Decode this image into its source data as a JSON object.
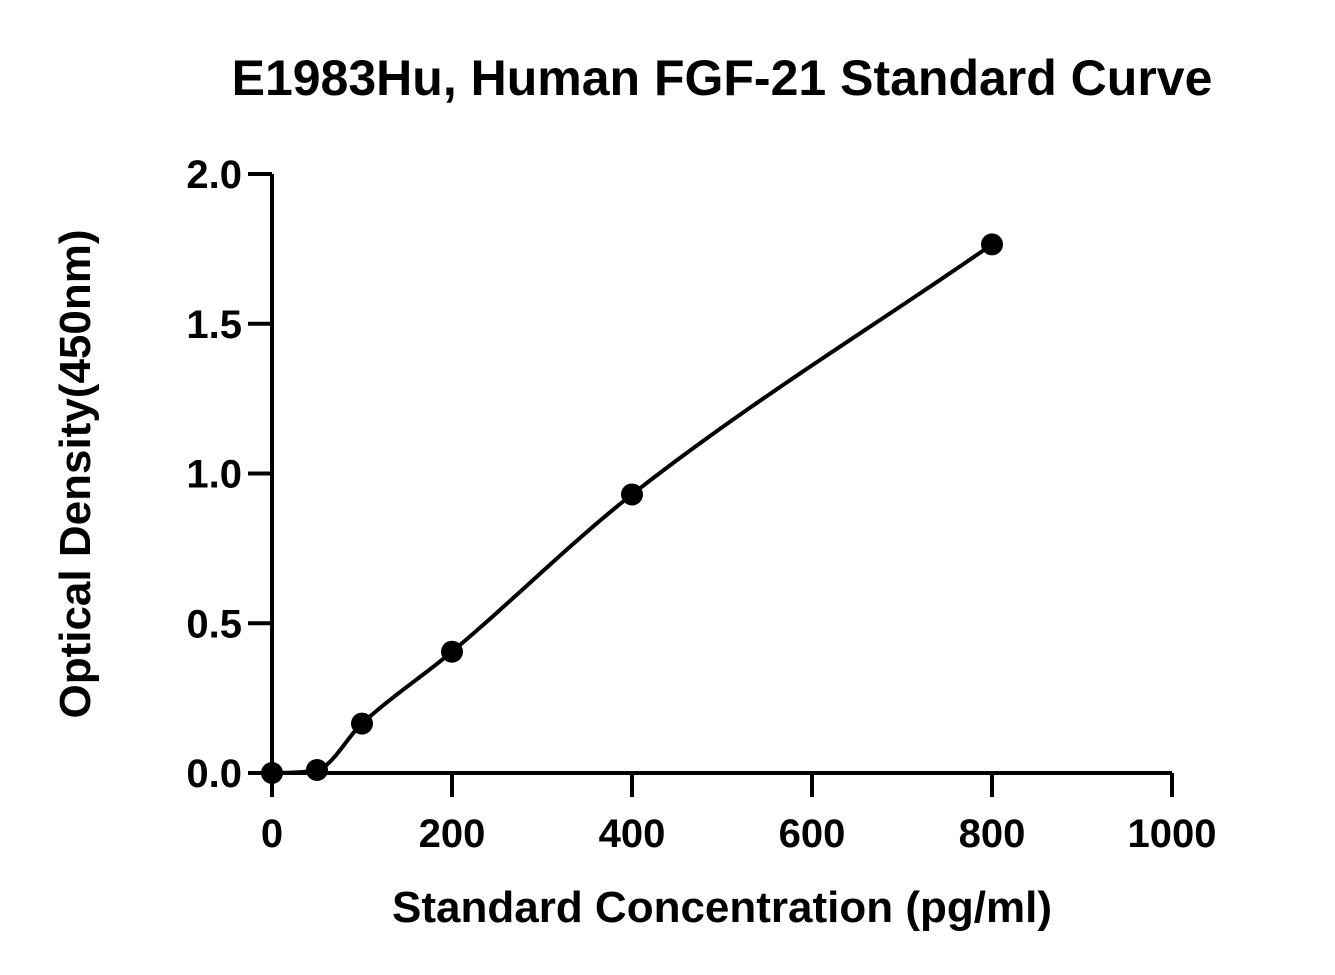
{
  "chart_data": {
    "type": "scatter",
    "title": "E1983Hu, Human FGF-21 Standard Curve",
    "xlabel": "Standard Concentration (pg/ml)",
    "ylabel": "Optical Density(450nm)",
    "xlim": [
      0,
      1000
    ],
    "ylim": [
      0,
      2.0
    ],
    "x_ticks": [
      0,
      200,
      400,
      600,
      800,
      1000
    ],
    "x_tick_labels": [
      "0",
      "200",
      "400",
      "600",
      "800",
      "1000"
    ],
    "y_ticks": [
      0,
      0.5,
      1.0,
      1.5,
      2.0
    ],
    "y_tick_labels": [
      "0.0",
      "0.5",
      "1.0",
      "1.5",
      "2.0"
    ],
    "grid": false,
    "legend": "none",
    "fit": "smooth curve through points",
    "series": [
      {
        "x": [
          0,
          50,
          100,
          200,
          400,
          800
        ],
        "y": [
          0.0,
          0.01,
          0.165,
          0.405,
          0.93,
          1.765
        ]
      }
    ],
    "colors": {
      "points": "#000000",
      "curve": "#000000",
      "axes": "#000000"
    }
  }
}
